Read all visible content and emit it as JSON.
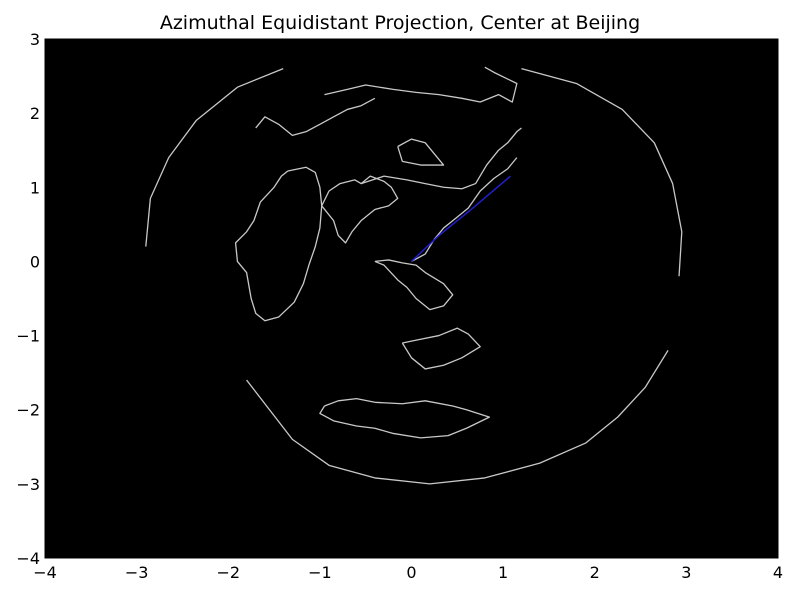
{
  "title": "Azimuthal Equidistant Projection, Center at Beijing",
  "colors": {
    "background": "#000000",
    "coastline": "#c8c8c8",
    "route": "#1f1fd0",
    "frame": "#000000"
  },
  "chart_data": {
    "type": "map",
    "title": "Azimuthal Equidistant Projection, Center at Beijing",
    "xlim": [
      -4,
      4
    ],
    "ylim": [
      -4,
      3
    ],
    "xticks": [
      -4,
      -3,
      -2,
      -1,
      0,
      1,
      2,
      3,
      4
    ],
    "yticks": [
      -4,
      -3,
      -2,
      -1,
      0,
      1,
      2,
      3
    ],
    "xtick_labels": [
      "−4",
      "−3",
      "−2",
      "−1",
      "0",
      "1",
      "2",
      "3",
      "4"
    ],
    "ytick_labels": [
      "−4",
      "−3",
      "−2",
      "−1",
      "0",
      "1",
      "2",
      "3"
    ],
    "route": {
      "points": [
        [
          0.0,
          0.0
        ],
        [
          0.3,
          0.35
        ],
        [
          0.65,
          0.7
        ],
        [
          1.08,
          1.15
        ]
      ]
    },
    "coastlines": [
      [
        [
          -1.35,
          1.22
        ],
        [
          -1.15,
          1.27
        ],
        [
          -1.05,
          1.2
        ],
        [
          -1.0,
          1.0
        ],
        [
          -0.98,
          0.75
        ],
        [
          -1.0,
          0.45
        ],
        [
          -1.05,
          0.2
        ],
        [
          -1.12,
          -0.05
        ],
        [
          -1.18,
          -0.3
        ],
        [
          -1.28,
          -0.55
        ],
        [
          -1.45,
          -0.75
        ],
        [
          -1.6,
          -0.8
        ],
        [
          -1.7,
          -0.7
        ],
        [
          -1.75,
          -0.5
        ],
        [
          -1.8,
          -0.15
        ],
        [
          -1.9,
          0.0
        ],
        [
          -1.92,
          0.25
        ],
        [
          -1.8,
          0.4
        ],
        [
          -1.72,
          0.55
        ],
        [
          -1.65,
          0.8
        ],
        [
          -1.5,
          1.0
        ],
        [
          -1.42,
          1.15
        ],
        [
          -1.35,
          1.22
        ]
      ],
      [
        [
          -0.98,
          0.75
        ],
        [
          -0.9,
          0.95
        ],
        [
          -0.78,
          1.05
        ],
        [
          -0.62,
          1.1
        ],
        [
          -0.55,
          1.05
        ],
        [
          -0.45,
          1.15
        ],
        [
          -0.3,
          1.08
        ],
        [
          -0.22,
          1.0
        ],
        [
          -0.15,
          0.85
        ],
        [
          -0.25,
          0.75
        ],
        [
          -0.4,
          0.7
        ],
        [
          -0.55,
          0.55
        ],
        [
          -0.65,
          0.4
        ],
        [
          -0.72,
          0.25
        ],
        [
          -0.8,
          0.35
        ],
        [
          -0.85,
          0.55
        ],
        [
          -0.98,
          0.75
        ]
      ],
      [
        [
          -0.4,
          0.0
        ],
        [
          -0.3,
          -0.05
        ],
        [
          -0.15,
          -0.25
        ],
        [
          -0.05,
          -0.35
        ],
        [
          0.05,
          -0.5
        ],
        [
          0.2,
          -0.65
        ],
        [
          0.35,
          -0.6
        ],
        [
          0.45,
          -0.45
        ],
        [
          0.35,
          -0.3
        ],
        [
          0.15,
          -0.15
        ],
        [
          0.05,
          -0.05
        ],
        [
          -0.1,
          -0.02
        ],
        [
          -0.25,
          0.02
        ],
        [
          -0.4,
          0.0
        ]
      ],
      [
        [
          0.0,
          0.0
        ],
        [
          0.15,
          0.1
        ],
        [
          0.25,
          0.3
        ],
        [
          0.35,
          0.45
        ],
        [
          0.5,
          0.6
        ],
        [
          0.62,
          0.72
        ],
        [
          0.75,
          0.95
        ],
        [
          0.9,
          1.12
        ],
        [
          1.05,
          1.25
        ],
        [
          1.15,
          1.4
        ]
      ],
      [
        [
          -0.55,
          1.05
        ],
        [
          -0.3,
          1.15
        ],
        [
          -0.05,
          1.1
        ],
        [
          0.15,
          1.05
        ],
        [
          0.35,
          1.0
        ],
        [
          0.55,
          0.98
        ],
        [
          0.7,
          1.05
        ],
        [
          0.82,
          1.3
        ],
        [
          0.95,
          1.5
        ],
        [
          1.05,
          1.6
        ],
        [
          1.15,
          1.75
        ],
        [
          1.2,
          1.8
        ]
      ],
      [
        [
          -0.15,
          1.55
        ],
        [
          0.0,
          1.65
        ],
        [
          0.15,
          1.6
        ],
        [
          0.25,
          1.45
        ],
        [
          0.35,
          1.3
        ],
        [
          0.1,
          1.3
        ],
        [
          -0.1,
          1.35
        ],
        [
          -0.15,
          1.55
        ]
      ],
      [
        [
          -0.95,
          2.25
        ],
        [
          -0.7,
          2.32
        ],
        [
          -0.5,
          2.38
        ],
        [
          -0.2,
          2.32
        ],
        [
          0.05,
          2.28
        ],
        [
          0.3,
          2.25
        ],
        [
          0.55,
          2.2
        ],
        [
          0.75,
          2.15
        ],
        [
          0.95,
          2.25
        ],
        [
          1.1,
          2.15
        ],
        [
          1.15,
          2.4
        ],
        [
          0.9,
          2.55
        ],
        [
          0.8,
          2.62
        ]
      ],
      [
        [
          -1.7,
          1.8
        ],
        [
          -1.6,
          1.95
        ],
        [
          -1.45,
          1.85
        ],
        [
          -1.3,
          1.7
        ],
        [
          -1.15,
          1.75
        ],
        [
          -1.0,
          1.85
        ],
        [
          -0.85,
          1.95
        ],
        [
          -0.7,
          2.05
        ],
        [
          -0.55,
          2.1
        ],
        [
          -0.4,
          2.2
        ]
      ],
      [
        [
          -0.1,
          -1.1
        ],
        [
          0.1,
          -1.05
        ],
        [
          0.3,
          -1.0
        ],
        [
          0.5,
          -0.9
        ],
        [
          0.62,
          -0.98
        ],
        [
          0.75,
          -1.15
        ],
        [
          0.55,
          -1.3
        ],
        [
          0.35,
          -1.4
        ],
        [
          0.15,
          -1.45
        ],
        [
          0.0,
          -1.3
        ],
        [
          -0.1,
          -1.1
        ]
      ],
      [
        [
          -0.95,
          -1.95
        ],
        [
          -0.8,
          -1.88
        ],
        [
          -0.6,
          -1.85
        ],
        [
          -0.4,
          -1.9
        ],
        [
          -0.1,
          -1.92
        ],
        [
          0.15,
          -1.88
        ],
        [
          0.45,
          -1.95
        ],
        [
          0.6,
          -2.0
        ],
        [
          0.85,
          -2.1
        ],
        [
          0.6,
          -2.25
        ],
        [
          0.4,
          -2.35
        ],
        [
          0.1,
          -2.38
        ],
        [
          -0.2,
          -2.32
        ],
        [
          -0.4,
          -2.25
        ],
        [
          -0.6,
          -2.22
        ],
        [
          -0.85,
          -2.15
        ],
        [
          -1.0,
          -2.05
        ],
        [
          -0.95,
          -1.95
        ]
      ],
      [
        [
          -1.8,
          -1.6
        ],
        [
          -1.3,
          -2.4
        ],
        [
          -0.9,
          -2.75
        ],
        [
          -0.4,
          -2.92
        ],
        [
          0.2,
          -3.0
        ],
        [
          0.8,
          -2.92
        ],
        [
          1.4,
          -2.72
        ],
        [
          1.9,
          -2.45
        ],
        [
          2.25,
          -2.1
        ],
        [
          2.55,
          -1.7
        ],
        [
          2.8,
          -1.2
        ]
      ],
      [
        [
          -2.9,
          0.2
        ],
        [
          -2.85,
          0.85
        ],
        [
          -2.65,
          1.4
        ],
        [
          -2.35,
          1.9
        ],
        [
          -1.9,
          2.35
        ],
        [
          -1.4,
          2.6
        ]
      ],
      [
        [
          1.2,
          2.6
        ],
        [
          1.8,
          2.4
        ],
        [
          2.3,
          2.05
        ],
        [
          2.65,
          1.6
        ],
        [
          2.85,
          1.05
        ],
        [
          2.95,
          0.4
        ],
        [
          2.92,
          -0.2
        ]
      ]
    ]
  }
}
